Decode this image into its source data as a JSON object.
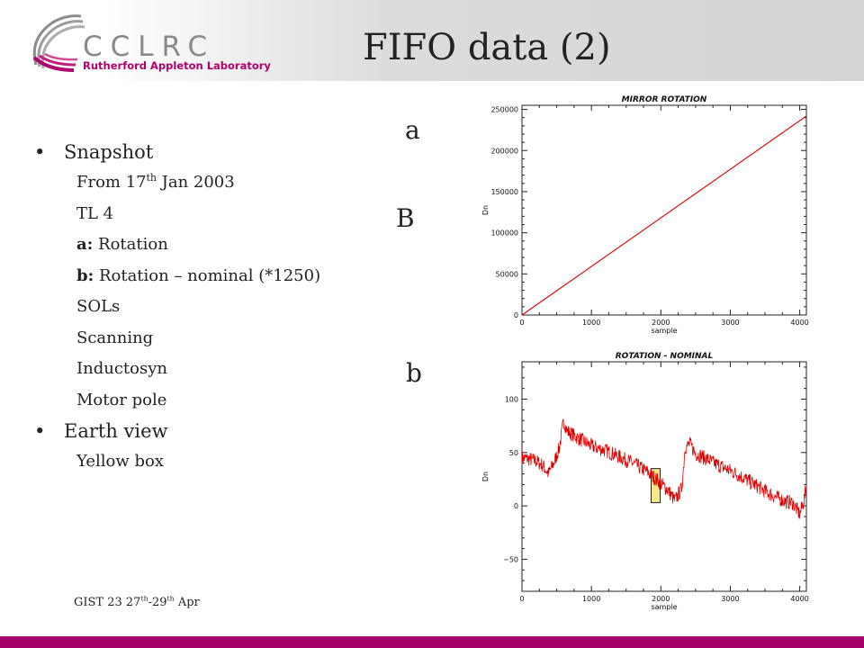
{
  "header": {
    "logo_org": "CCLRC",
    "logo_sub": "Rutherford Appleton Laboratory",
    "title": "FIFO data (2)"
  },
  "colors": {
    "brand_magenta": "#a5006a",
    "trace_red": "#e00000",
    "highlight_yellow": "#f5e88a"
  },
  "outline": {
    "snapshot": {
      "label": "Snapshot",
      "from_pre": "From 17",
      "from_sup": "th",
      "from_post": " Jan 2003",
      "tl": "TL 4",
      "a_key": "a:",
      "a_text": " Rotation",
      "b_key": "b:",
      "b_text": " Rotation – nominal (*1250)",
      "sols": "SOLs",
      "scanning": "Scanning",
      "inductosyn": "Inductosyn",
      "motor_pole": "Motor pole"
    },
    "earth": {
      "label": "Earth view",
      "box": "Yellow box"
    }
  },
  "panel_labels": {
    "a": "a",
    "B": "B",
    "b": "b"
  },
  "footer": {
    "pre": "GIST 23 27",
    "sup1": "th",
    "mid": "-29",
    "sup2": "th",
    "post": " Apr"
  },
  "chart_data": [
    {
      "type": "line",
      "title": "MIRROR ROTATION",
      "xlabel": "sample",
      "ylabel": "Dn",
      "xlim": [
        0,
        4096
      ],
      "ylim": [
        0,
        255000
      ],
      "xticks": [
        0,
        1000,
        2000,
        3000,
        4000
      ],
      "yticks": [
        0,
        50000,
        100000,
        150000,
        200000,
        250000
      ],
      "series": [
        {
          "x": [
            0,
            4096
          ],
          "y": [
            0,
            242000
          ]
        }
      ]
    },
    {
      "type": "line",
      "title": "ROTATION - NOMINAL",
      "xlabel": "sample",
      "ylabel": "Dn",
      "xlim": [
        0,
        4096
      ],
      "ylim": [
        -80,
        135
      ],
      "xticks": [
        0,
        1000,
        2000,
        3000,
        4000
      ],
      "yticks": [
        -50,
        0,
        50,
        100
      ],
      "series": [
        {
          "x": [
            0,
            100,
            200,
            300,
            380,
            470,
            540,
            600,
            650,
            800,
            1000,
            1200,
            1400,
            1600,
            1800,
            1950,
            2100,
            2200,
            2300,
            2350,
            2420,
            2500,
            2600,
            2800,
            3000,
            3200,
            3400,
            3600,
            3800,
            3900,
            4000,
            4060,
            4096
          ],
          "y": [
            45,
            44,
            42,
            38,
            30,
            42,
            55,
            80,
            70,
            64,
            56,
            52,
            46,
            40,
            32,
            24,
            15,
            5,
            16,
            55,
            58,
            49,
            46,
            39,
            33,
            26,
            18,
            10,
            4,
            3,
            -8,
            5,
            18
          ]
        }
      ],
      "highlight_box": {
        "x": [
          1860,
          1990
        ],
        "y": [
          3,
          35
        ]
      }
    }
  ]
}
